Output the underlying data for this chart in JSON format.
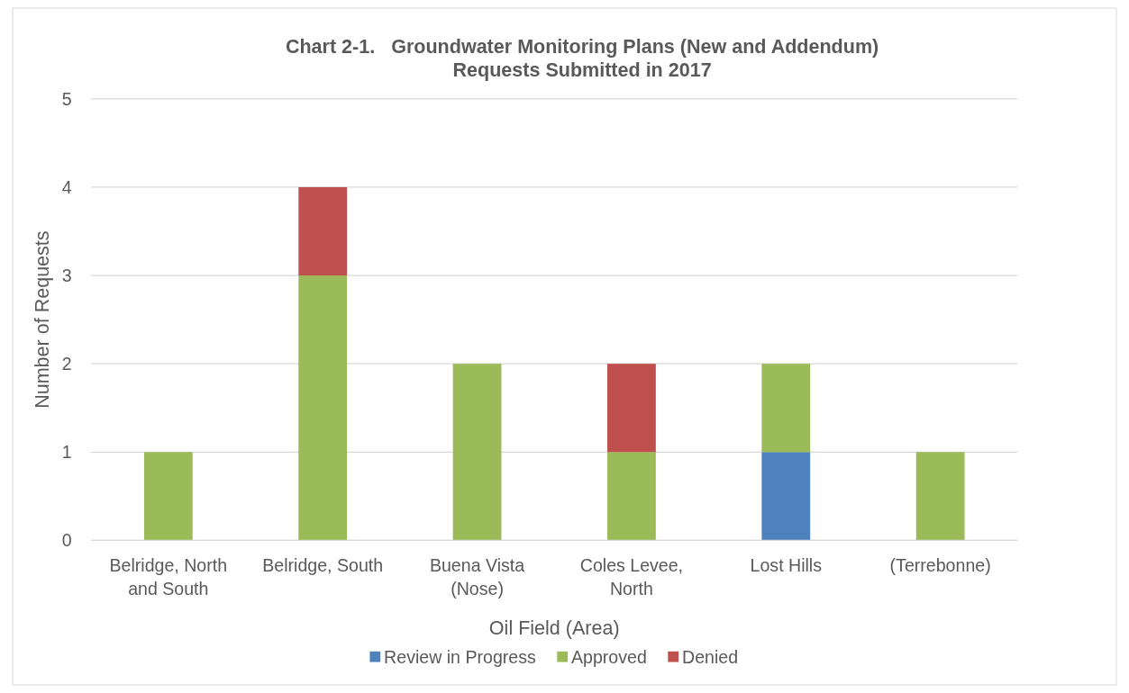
{
  "chart_data": {
    "type": "bar",
    "title": "Chart 2-1.   Groundwater Monitoring Plans (New and Addendum)\nRequests Submitted in 2017",
    "xlabel": "Oil Field (Area)",
    "ylabel": "Number of Requests",
    "categories": [
      "Belridge, North and South",
      "Belridge, South",
      "Buena Vista (Nose)",
      "Coles Levee, North",
      "Lost Hills",
      "(Terrebonne)"
    ],
    "stacked": true,
    "series": [
      {
        "name": "Review in Progress",
        "color": "#4f81bd",
        "values": [
          0,
          0,
          0,
          0,
          1,
          0
        ]
      },
      {
        "name": "Approved",
        "color": "#9bbb59",
        "values": [
          1,
          3,
          2,
          1,
          1,
          1
        ]
      },
      {
        "name": "Denied",
        "color": "#c0504d",
        "values": [
          0,
          1,
          0,
          1,
          0,
          0
        ]
      }
    ],
    "ylim": [
      0,
      5
    ],
    "yticks": [
      0,
      1,
      2,
      3,
      4,
      5
    ],
    "grid": "y",
    "legend": "bottom"
  }
}
